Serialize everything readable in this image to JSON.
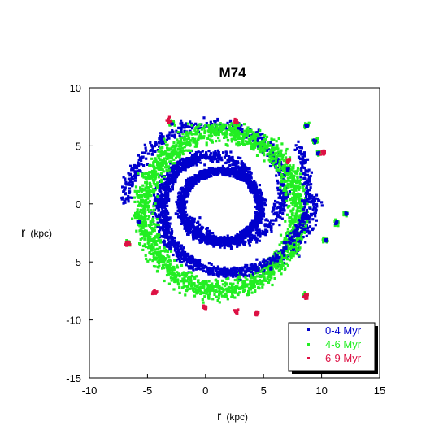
{
  "chart_data": {
    "type": "scatter",
    "title": "M74",
    "xlabel": "r",
    "xunit": "(kpc)",
    "ylabel": "r",
    "yunit": "(kpc)",
    "xlim": [
      -10,
      15
    ],
    "ylim": [
      -15,
      10
    ],
    "xticks": [
      "-10",
      "-5",
      "0",
      "5",
      "10",
      "15"
    ],
    "yticks": [
      "10",
      "5",
      "0",
      "-5",
      "-10",
      "-15"
    ],
    "grid": false,
    "legend_position": "bottom-right",
    "series": [
      {
        "name": "0-4 Myr",
        "color": "#0000cc"
      },
      {
        "name": "4-6 Myr",
        "color": "#22ee22"
      },
      {
        "name": "6-9 Myr",
        "color": "#dd1144"
      }
    ]
  }
}
